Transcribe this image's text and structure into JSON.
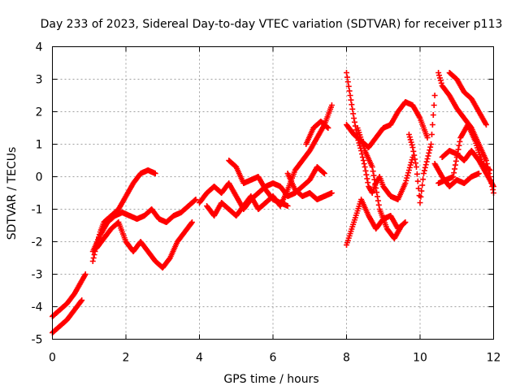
{
  "chart_data": {
    "type": "scatter",
    "title": "Day 233 of 2023, Sidereal Day-to-day VTEC variation (SDTVAR) for receiver p113",
    "xlabel": "GPS time / hours",
    "ylabel": "SDTVAR / TECUs",
    "xlim": [
      0,
      12
    ],
    "ylim": [
      -5,
      4
    ],
    "xticks": [
      0,
      2,
      4,
      6,
      8,
      10,
      12
    ],
    "yticks": [
      -5,
      -4,
      -3,
      -2,
      -1,
      0,
      1,
      2,
      3,
      4
    ],
    "grid": true,
    "marker": "plus",
    "color": "#ff0000",
    "segments": [
      [
        [
          0.0,
          -4.3
        ],
        [
          0.2,
          -4.1
        ],
        [
          0.4,
          -3.9
        ],
        [
          0.6,
          -3.6
        ],
        [
          0.8,
          -3.2
        ],
        [
          0.9,
          -3.0
        ]
      ],
      [
        [
          0.0,
          -4.8
        ],
        [
          0.2,
          -4.6
        ],
        [
          0.4,
          -4.4
        ],
        [
          0.6,
          -4.1
        ],
        [
          0.8,
          -3.8
        ]
      ],
      [
        [
          1.1,
          -2.6
        ],
        [
          1.2,
          -2.1
        ],
        [
          1.3,
          -1.7
        ],
        [
          1.4,
          -1.4
        ],
        [
          1.6,
          -1.2
        ],
        [
          1.8,
          -1.0
        ],
        [
          2.0,
          -0.6
        ],
        [
          2.2,
          -0.2
        ],
        [
          2.4,
          0.1
        ],
        [
          2.6,
          0.2
        ],
        [
          2.8,
          0.1
        ]
      ],
      [
        [
          1.1,
          -2.3
        ],
        [
          1.3,
          -1.8
        ],
        [
          1.5,
          -1.4
        ],
        [
          1.7,
          -1.2
        ],
        [
          1.9,
          -1.1
        ],
        [
          2.1,
          -1.2
        ],
        [
          2.3,
          -1.3
        ],
        [
          2.5,
          -1.2
        ],
        [
          2.7,
          -1.0
        ],
        [
          2.9,
          -1.3
        ],
        [
          3.1,
          -1.4
        ],
        [
          3.3,
          -1.2
        ],
        [
          3.5,
          -1.1
        ],
        [
          3.7,
          -0.9
        ],
        [
          3.9,
          -0.7
        ]
      ],
      [
        [
          1.2,
          -2.2
        ],
        [
          1.4,
          -1.9
        ],
        [
          1.6,
          -1.6
        ],
        [
          1.8,
          -1.4
        ],
        [
          2.0,
          -2.0
        ],
        [
          2.2,
          -2.3
        ],
        [
          2.4,
          -2.0
        ],
        [
          2.6,
          -2.3
        ],
        [
          2.8,
          -2.6
        ],
        [
          3.0,
          -2.8
        ],
        [
          3.2,
          -2.5
        ],
        [
          3.4,
          -2.0
        ],
        [
          3.6,
          -1.7
        ],
        [
          3.8,
          -1.4
        ]
      ],
      [
        [
          4.0,
          -0.8
        ],
        [
          4.2,
          -0.5
        ],
        [
          4.4,
          -0.3
        ],
        [
          4.6,
          -0.5
        ],
        [
          4.8,
          -0.2
        ],
        [
          5.0,
          -0.6
        ],
        [
          5.2,
          -1.0
        ],
        [
          5.4,
          -0.7
        ],
        [
          5.6,
          -0.5
        ],
        [
          5.8,
          -0.3
        ],
        [
          6.0,
          -0.2
        ],
        [
          6.2,
          -0.3
        ],
        [
          6.4,
          -0.6
        ],
        [
          6.6,
          -0.5
        ],
        [
          6.8,
          -0.3
        ],
        [
          7.0,
          -0.1
        ],
        [
          7.2,
          0.3
        ],
        [
          7.4,
          0.1
        ]
      ],
      [
        [
          4.2,
          -0.9
        ],
        [
          4.4,
          -1.2
        ],
        [
          4.6,
          -0.8
        ],
        [
          4.8,
          -1.0
        ],
        [
          5.0,
          -1.2
        ],
        [
          5.2,
          -0.9
        ],
        [
          5.4,
          -0.6
        ],
        [
          5.6,
          -1.0
        ],
        [
          5.8,
          -0.8
        ],
        [
          6.0,
          -0.6
        ],
        [
          6.2,
          -0.9
        ],
        [
          6.4,
          -0.4
        ],
        [
          6.6,
          0.2
        ],
        [
          6.8,
          0.5
        ],
        [
          7.0,
          0.8
        ],
        [
          7.2,
          1.2
        ],
        [
          7.4,
          1.6
        ],
        [
          7.6,
          2.2
        ]
      ],
      [
        [
          4.8,
          0.5
        ],
        [
          5.0,
          0.3
        ],
        [
          5.2,
          -0.2
        ],
        [
          5.4,
          -0.1
        ],
        [
          5.6,
          0.0
        ],
        [
          5.8,
          -0.4
        ],
        [
          6.0,
          -0.7
        ],
        [
          6.2,
          -0.8
        ],
        [
          6.4,
          -0.9
        ]
      ],
      [
        [
          6.4,
          0.1
        ],
        [
          6.6,
          -0.4
        ],
        [
          6.8,
          -0.6
        ],
        [
          7.0,
          -0.5
        ],
        [
          7.2,
          -0.7
        ],
        [
          7.4,
          -0.6
        ],
        [
          7.6,
          -0.5
        ]
      ],
      [
        [
          6.9,
          1.0
        ],
        [
          7.1,
          1.5
        ],
        [
          7.3,
          1.7
        ],
        [
          7.5,
          1.5
        ]
      ],
      [
        [
          8.0,
          3.2
        ],
        [
          8.1,
          2.5
        ],
        [
          8.2,
          1.8
        ],
        [
          8.3,
          1.2
        ],
        [
          8.4,
          0.8
        ],
        [
          8.5,
          0.3
        ],
        [
          8.6,
          -0.3
        ],
        [
          8.7,
          -0.5
        ],
        [
          8.8,
          -0.2
        ],
        [
          8.9,
          0.0
        ],
        [
          9.0,
          -0.3
        ],
        [
          9.2,
          -0.6
        ],
        [
          9.4,
          -0.7
        ],
        [
          9.6,
          -0.2
        ],
        [
          9.8,
          0.6
        ]
      ],
      [
        [
          8.0,
          1.6
        ],
        [
          8.2,
          1.3
        ],
        [
          8.4,
          1.1
        ],
        [
          8.6,
          0.9
        ],
        [
          8.8,
          1.2
        ],
        [
          9.0,
          1.5
        ],
        [
          9.2,
          1.6
        ],
        [
          9.4,
          2.0
        ],
        [
          9.6,
          2.3
        ],
        [
          9.8,
          2.2
        ],
        [
          10.0,
          1.8
        ],
        [
          10.2,
          1.2
        ]
      ],
      [
        [
          8.0,
          -2.1
        ],
        [
          8.2,
          -1.4
        ],
        [
          8.4,
          -0.7
        ],
        [
          8.6,
          -1.2
        ],
        [
          8.8,
          -1.6
        ],
        [
          9.0,
          -1.3
        ],
        [
          9.2,
          -1.2
        ],
        [
          9.4,
          -1.6
        ],
        [
          9.6,
          -1.4
        ]
      ],
      [
        [
          8.3,
          1.5
        ],
        [
          8.5,
          0.8
        ],
        [
          8.7,
          0.3
        ],
        [
          8.9,
          -1.0
        ],
        [
          9.1,
          -1.6
        ],
        [
          9.3,
          -1.9
        ],
        [
          9.5,
          -1.5
        ]
      ],
      [
        [
          9.7,
          1.3
        ],
        [
          9.8,
          0.9
        ],
        [
          9.9,
          0.3
        ],
        [
          10.0,
          -0.8
        ],
        [
          10.1,
          0.1
        ],
        [
          10.3,
          1.0
        ],
        [
          10.4,
          2.5
        ]
      ],
      [
        [
          10.5,
          3.2
        ],
        [
          10.6,
          2.8
        ],
        [
          10.8,
          2.5
        ],
        [
          11.0,
          2.1
        ],
        [
          11.2,
          1.8
        ],
        [
          11.4,
          1.5
        ],
        [
          11.6,
          1.0
        ],
        [
          11.8,
          0.5
        ],
        [
          12.0,
          -0.5
        ]
      ],
      [
        [
          10.8,
          3.2
        ],
        [
          11.0,
          3.0
        ],
        [
          11.2,
          2.6
        ],
        [
          11.4,
          2.4
        ],
        [
          11.6,
          2.0
        ],
        [
          11.8,
          1.6
        ]
      ],
      [
        [
          10.6,
          0.6
        ],
        [
          10.8,
          0.8
        ],
        [
          11.0,
          0.7
        ],
        [
          11.2,
          0.5
        ],
        [
          11.4,
          0.8
        ],
        [
          11.6,
          0.5
        ],
        [
          11.8,
          0.1
        ],
        [
          12.0,
          -0.3
        ]
      ],
      [
        [
          10.5,
          -0.2
        ],
        [
          10.7,
          -0.1
        ],
        [
          10.9,
          0.0
        ],
        [
          11.1,
          1.2
        ],
        [
          11.3,
          1.6
        ],
        [
          11.5,
          1.1
        ],
        [
          11.7,
          0.4
        ],
        [
          11.9,
          0.2
        ]
      ],
      [
        [
          10.4,
          0.4
        ],
        [
          10.6,
          0.0
        ],
        [
          10.8,
          -0.3
        ],
        [
          11.0,
          -0.1
        ],
        [
          11.2,
          -0.2
        ],
        [
          11.4,
          0.0
        ],
        [
          11.6,
          0.1
        ]
      ]
    ]
  }
}
